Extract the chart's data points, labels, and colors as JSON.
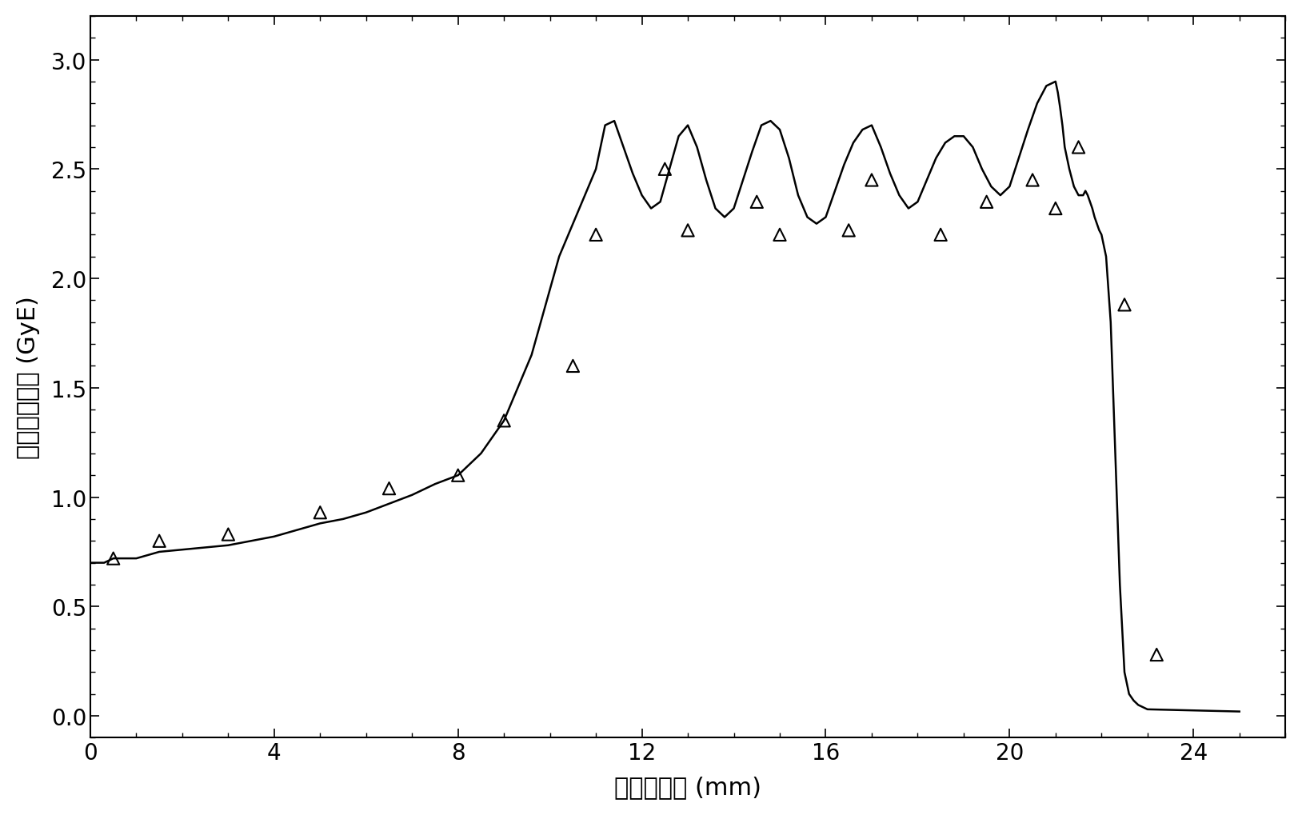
{
  "xlabel": "水中的深度 (mm)",
  "ylabel": "生物有效剂量 (GyE)",
  "xlim": [
    0,
    26
  ],
  "ylim": [
    -0.1,
    3.2
  ],
  "xticks": [
    0,
    4,
    8,
    12,
    16,
    20,
    24
  ],
  "yticks": [
    0.0,
    0.5,
    1.0,
    1.5,
    2.0,
    2.5,
    3.0
  ],
  "background_color": "#ffffff",
  "line_color": "#000000",
  "marker_color": "#000000",
  "triangle_points_x": [
    0.5,
    1.5,
    3.0,
    5.0,
    6.5,
    8.0,
    9.0,
    10.5,
    11.0,
    12.5,
    13.0,
    14.5,
    15.0,
    16.5,
    17.0,
    18.5,
    19.5,
    20.5,
    21.0,
    21.5,
    22.5,
    23.2
  ],
  "triangle_points_y": [
    0.72,
    0.8,
    0.83,
    0.93,
    1.04,
    1.1,
    1.35,
    1.6,
    2.2,
    2.5,
    2.22,
    2.35,
    2.2,
    2.22,
    2.45,
    2.2,
    2.35,
    2.45,
    2.32,
    2.6,
    1.88,
    0.28
  ],
  "curve_x": [
    0.0,
    0.3,
    0.5,
    1.0,
    1.5,
    2.0,
    2.5,
    3.0,
    3.5,
    4.0,
    4.5,
    5.0,
    5.5,
    6.0,
    6.5,
    7.0,
    7.5,
    8.0,
    8.5,
    9.0,
    9.3,
    9.6,
    9.8,
    10.0,
    10.2,
    10.4,
    10.6,
    10.8,
    11.0,
    11.2,
    11.4,
    11.6,
    11.8,
    12.0,
    12.2,
    12.4,
    12.6,
    12.8,
    13.0,
    13.2,
    13.4,
    13.6,
    13.8,
    14.0,
    14.2,
    14.4,
    14.6,
    14.8,
    15.0,
    15.2,
    15.4,
    15.6,
    15.8,
    16.0,
    16.2,
    16.4,
    16.6,
    16.8,
    17.0,
    17.2,
    17.4,
    17.6,
    17.8,
    18.0,
    18.2,
    18.4,
    18.6,
    18.8,
    19.0,
    19.2,
    19.4,
    19.6,
    19.8,
    20.0,
    20.2,
    20.4,
    20.6,
    20.8,
    21.0,
    21.05,
    21.1,
    21.15,
    21.2,
    21.3,
    21.4,
    21.5,
    21.6,
    21.65,
    21.7,
    21.75,
    21.8,
    21.85,
    21.9,
    21.95,
    22.0,
    22.1,
    22.2,
    22.3,
    22.4,
    22.5,
    22.6,
    22.7,
    22.8,
    23.0,
    25.0
  ],
  "curve_y": [
    0.7,
    0.7,
    0.72,
    0.72,
    0.75,
    0.76,
    0.77,
    0.78,
    0.8,
    0.82,
    0.85,
    0.88,
    0.9,
    0.93,
    0.97,
    1.01,
    1.06,
    1.1,
    1.2,
    1.35,
    1.5,
    1.65,
    1.8,
    1.95,
    2.1,
    2.2,
    2.3,
    2.4,
    2.5,
    2.7,
    2.72,
    2.6,
    2.48,
    2.38,
    2.32,
    2.35,
    2.5,
    2.65,
    2.7,
    2.6,
    2.45,
    2.32,
    2.28,
    2.32,
    2.45,
    2.58,
    2.7,
    2.72,
    2.68,
    2.55,
    2.38,
    2.28,
    2.25,
    2.28,
    2.4,
    2.52,
    2.62,
    2.68,
    2.7,
    2.6,
    2.48,
    2.38,
    2.32,
    2.35,
    2.45,
    2.55,
    2.62,
    2.65,
    2.65,
    2.6,
    2.5,
    2.42,
    2.38,
    2.42,
    2.55,
    2.68,
    2.8,
    2.88,
    2.9,
    2.85,
    2.78,
    2.7,
    2.6,
    2.5,
    2.42,
    2.38,
    2.38,
    2.4,
    2.38,
    2.35,
    2.32,
    2.28,
    2.25,
    2.22,
    2.2,
    2.1,
    1.8,
    1.2,
    0.6,
    0.2,
    0.1,
    0.07,
    0.05,
    0.03,
    0.02
  ]
}
